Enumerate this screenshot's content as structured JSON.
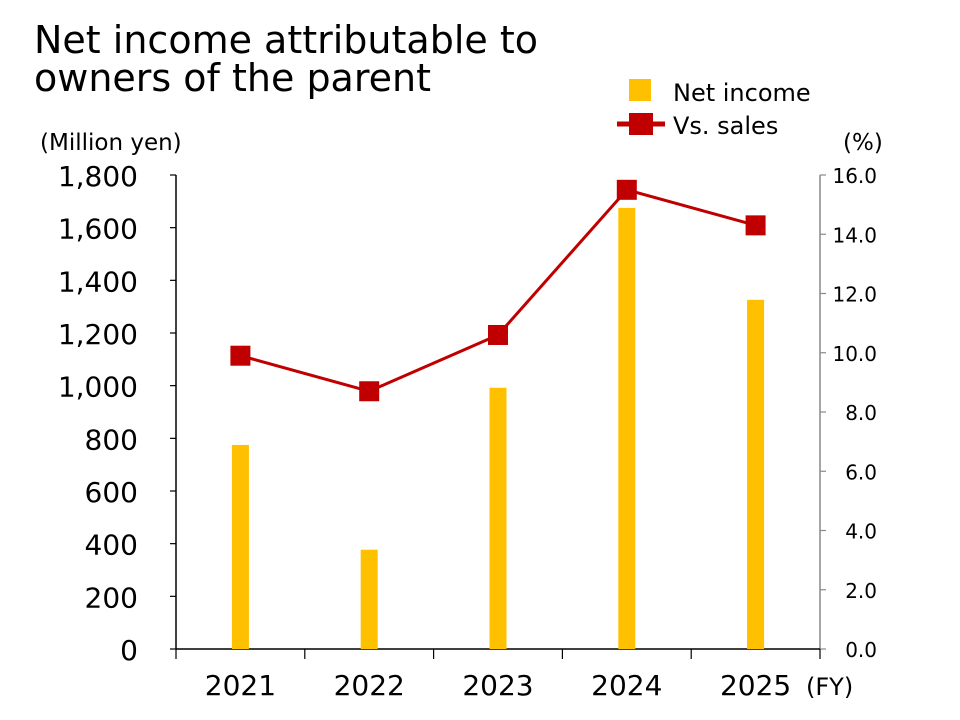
{
  "chart_data": {
    "type": "bar+line",
    "title_lines": [
      "Net income attributable to",
      "owners of the parent"
    ],
    "left_unit": "(Million yen)",
    "right_unit": "(%)",
    "x_unit": "(FY)",
    "categories": [
      "2021",
      "2022",
      "2023",
      "2024",
      "2025"
    ],
    "left_axis": {
      "min": 0,
      "max": 1800,
      "step": 200,
      "tick_labels": [
        "0",
        "200",
        "400",
        "600",
        "800",
        "1,000",
        "1,200",
        "1,400",
        "1,600",
        "1,800"
      ]
    },
    "right_axis": {
      "min": 0,
      "max": 16,
      "step": 2,
      "tick_labels": [
        "0.0",
        "2.0",
        "4.0",
        "6.0",
        "8.0",
        "10.0",
        "12.0",
        "14.0",
        "16.0"
      ]
    },
    "series": [
      {
        "name": "Net income",
        "kind": "bar",
        "axis": "left",
        "color": "#FFC000",
        "values": [
          775,
          377,
          992,
          1675,
          1326
        ]
      },
      {
        "name": "Vs. sales",
        "kind": "line",
        "axis": "right",
        "color": "#C00000",
        "values": [
          9.9,
          8.7,
          10.6,
          15.5,
          14.3
        ]
      }
    ],
    "grid": false,
    "legend_placement": "top-right"
  }
}
